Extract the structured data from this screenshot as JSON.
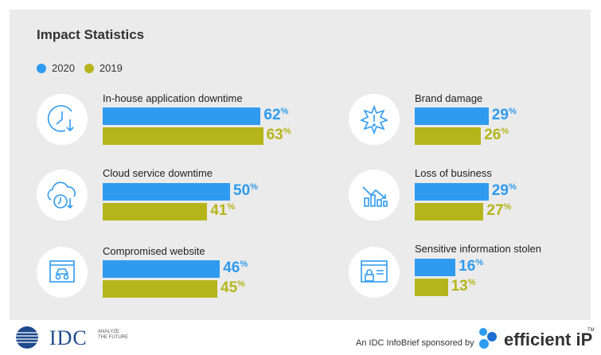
{
  "title": "Impact Statistics",
  "legend": [
    {
      "label": "2020",
      "color": "#2f9bf0"
    },
    {
      "label": "2019",
      "color": "#b5b51b"
    }
  ],
  "chart_data": {
    "type": "bar",
    "orientation": "horizontal",
    "title": "Impact Statistics",
    "unit": "%",
    "categories": [
      "In-house application downtime",
      "Cloud service downtime",
      "Compromised website",
      "Brand damage",
      "Loss of business",
      "Sensitive information stolen"
    ],
    "series": [
      {
        "name": "2020",
        "color": "#2f9bf0",
        "values": [
          62,
          50,
          46,
          29,
          29,
          16
        ]
      },
      {
        "name": "2019",
        "color": "#b5b51b",
        "values": [
          63,
          41,
          45,
          26,
          27,
          13
        ]
      }
    ],
    "icons": [
      "clock-down-icon",
      "cloud-clock-icon",
      "spy-browser-icon",
      "alert-burst-icon",
      "declining-chart-icon",
      "locked-browser-icon"
    ]
  },
  "footer": {
    "logo_text": "IDC",
    "logo_tagline": "ANALYZE THE FUTURE",
    "sponsor_text": "An IDC InfoBrief sponsored by",
    "sponsor_brand": "efficient iP",
    "sponsor_tm": "TM"
  }
}
